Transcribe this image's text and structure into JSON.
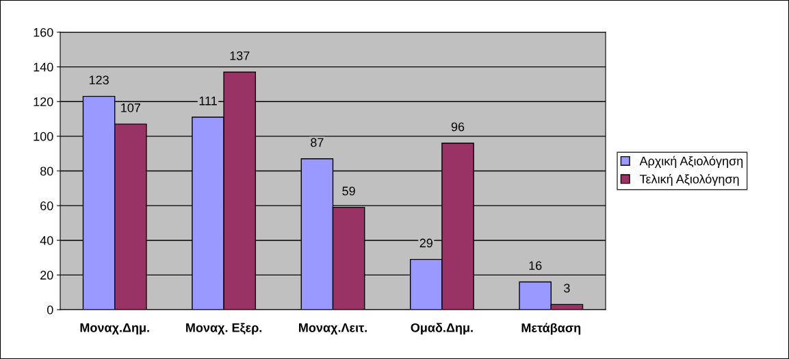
{
  "chart_data": {
    "type": "bar",
    "categories": [
      "Μοναχ.Δημ.",
      "Μοναχ. Εξερ.",
      "Μοναχ.Λειτ.",
      "Ομαδ.Δημ.",
      "Μετάβαση"
    ],
    "series": [
      {
        "name": "Αρχική Αξιολόγηση",
        "color": "#9999ff",
        "values": [
          123,
          111,
          87,
          29,
          16
        ]
      },
      {
        "name": "Τελική Αξιολόγηση",
        "color": "#993366",
        "values": [
          107,
          137,
          59,
          96,
          3
        ]
      }
    ],
    "ylim": [
      0,
      160
    ],
    "yticks": [
      0,
      20,
      40,
      60,
      80,
      100,
      120,
      140,
      160
    ],
    "grid": "y",
    "legend": "right",
    "data_labels": true
  }
}
